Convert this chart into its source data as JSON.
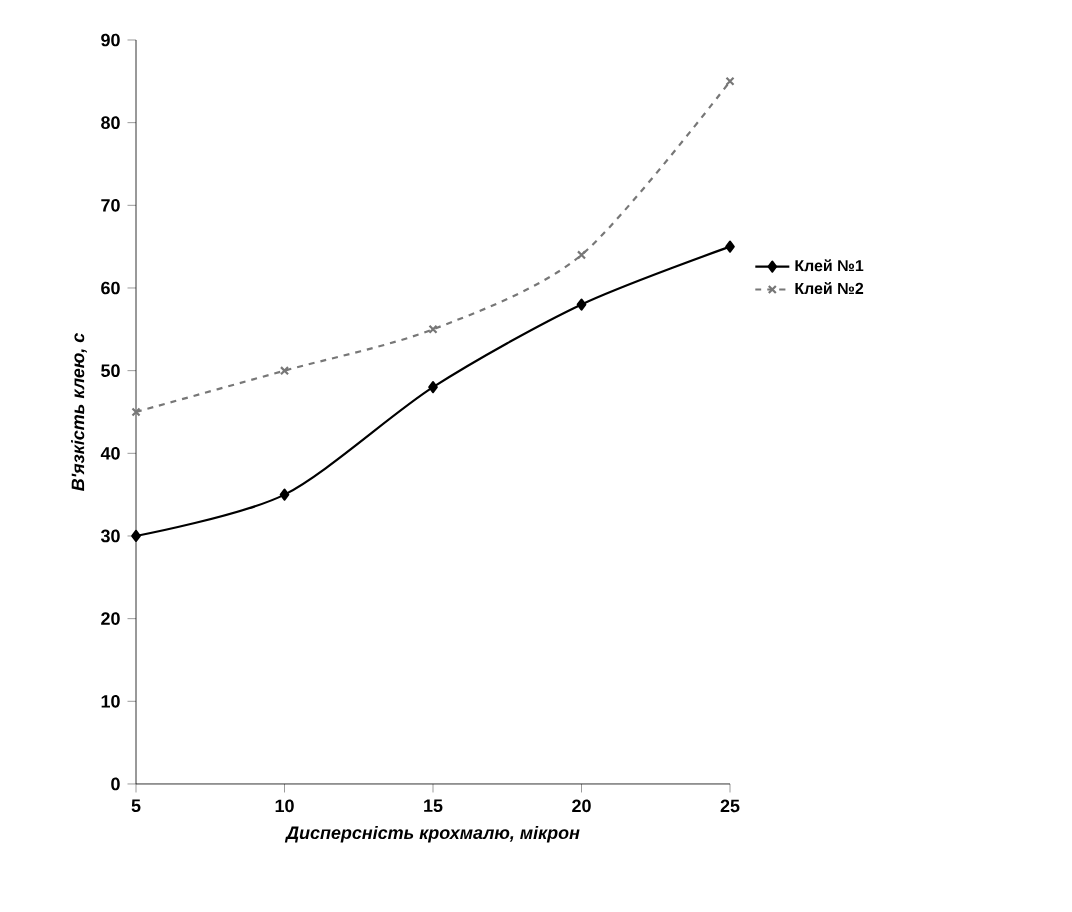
{
  "chart_data": {
    "type": "line",
    "xlabel": "Дисперсність крохмалю, мікрон",
    "ylabel": "В'язкість клею, с",
    "x": [
      5,
      10,
      15,
      20,
      25
    ],
    "series": [
      {
        "name": "Клей №1",
        "color": "#000000",
        "values": [
          30,
          35,
          48,
          58,
          65
        ],
        "marker": "diamond",
        "line_style": "solid"
      },
      {
        "name": "Клей №2",
        "color": "#777777",
        "values": [
          45,
          50,
          55,
          64,
          85
        ],
        "marker": "cross",
        "line_style": "dashed"
      }
    ],
    "xlim": [
      5,
      25
    ],
    "xticks": [
      5,
      10,
      15,
      20,
      25
    ],
    "ylim": [
      0,
      90
    ],
    "yticks": [
      0,
      10,
      20,
      30,
      40,
      50,
      60,
      70,
      80,
      90
    ],
    "grid": false,
    "legend": "right"
  }
}
